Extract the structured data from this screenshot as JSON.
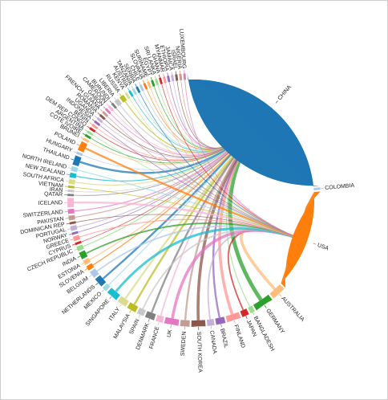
{
  "chart_data": {
    "type": "chord",
    "categories": [
      "CHINA",
      "COLOMBIA",
      "USA",
      "AUSTRALIA",
      "GERMANY",
      "BANGLADESH",
      "JAPAN",
      "FINLAND",
      "BRAZIL",
      "CANADA",
      "SOUTH KOREA",
      "SWEDEN",
      "UK",
      "FRANCE",
      "DENMARK",
      "SPAIN",
      "MALAYSIA",
      "ITALY",
      "SINGAPORE",
      "MEXICO",
      "NETHERLANDS",
      "BELGIUM",
      "SLOVENIA",
      "ESTONIA",
      "INDIA",
      "CZECH REPUBLIC",
      "CYPRUS",
      "GREECE",
      "NORWAY",
      "PORTUGAL",
      "DOMINICAN REP",
      "PAKISTAN",
      "SWITZERLAND",
      "ICELAND",
      "QATAR",
      "IRAN",
      "VIETNAM",
      "SOUTH AFRICA",
      "NEW ZEALAND",
      "NORTH IRELAND",
      "THAILAND",
      "HUNGARY",
      "POLAND",
      "BRUNEI",
      "COTE IVOIRE",
      "ARGENTINA",
      "DEM REP CONGO",
      "BENIN",
      "INDONESIA",
      "UGANDA",
      "ROMANIA",
      "FRENCH GUIANA",
      "GABON",
      "CAMEROON",
      "BURUNDI",
      "LIBERIA",
      "RUSSIA",
      "KENYA",
      "AUSTRIA",
      "TANZANIA",
      "SERBIA",
      "CHILE",
      "SLOVAKIA",
      "SURINAME",
      "EGYPT",
      "SRI LANKA",
      "GHANA",
      "MYANMAR",
      "ETHIOPIA",
      "JAMAICA",
      "ISRAEL",
      "NIGERIA",
      "LUXEMBOURG"
    ],
    "values": [
      40,
      0.5,
      22,
      3,
      4,
      1,
      1.5,
      3,
      2,
      1.5,
      3,
      2,
      3,
      1.5,
      2,
      1.5,
      2,
      2,
      2.5,
      1,
      2,
      1.5,
      1,
      1,
      1.5,
      1,
      0.5,
      1,
      0.5,
      1,
      0.5,
      1,
      1,
      2,
      0.5,
      0.5,
      0.5,
      1,
      1,
      1,
      2,
      0.5,
      2,
      0.5,
      0.5,
      0.5,
      0.5,
      0.5,
      0.5,
      0.5,
      0.5,
      0.5,
      0.5,
      0.5,
      0.5,
      1,
      1,
      0.5,
      0.5,
      0.5,
      0.5,
      0.5,
      0.5,
      0.5,
      0.5,
      0.5,
      0.5,
      0.5,
      0.5,
      0.5,
      0.5,
      0.5,
      0.5
    ],
    "palette": [
      "#1f77b4",
      "#aec7e8",
      "#ff7f0e",
      "#ffbb78",
      "#2ca02c",
      "#98df8a",
      "#d62728",
      "#ff9896",
      "#9467bd",
      "#c5b0d5",
      "#8c564b",
      "#c49c94",
      "#e377c2",
      "#f7b6d2",
      "#7f7f7f",
      "#c7c7c7",
      "#bcbd22",
      "#dbdb8d",
      "#17becf",
      "#9edae5"
    ]
  }
}
